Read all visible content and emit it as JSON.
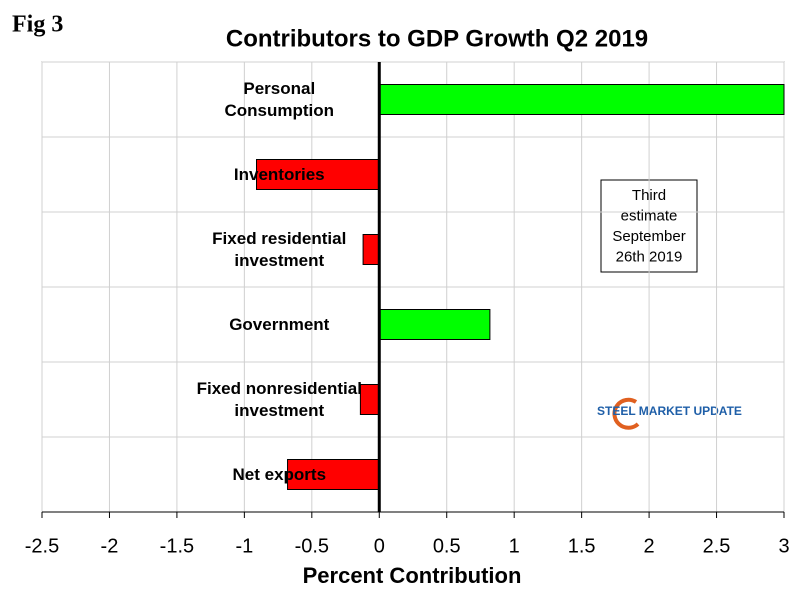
{
  "chart_data": {
    "type": "hbar",
    "figure_label": "Fig 3",
    "title": "Contributors to GDP Growth Q2 2019",
    "x_label": "Percent Contribution",
    "categories": [
      "Personal Consumption",
      "Inventories",
      "Fixed residential investment",
      "Government",
      "Fixed nonresidential investment",
      "Net exports"
    ],
    "values": [
      3.0,
      -0.91,
      -0.12,
      0.82,
      -0.14,
      -0.68
    ],
    "positive_color": "#00ff00",
    "negative_color": "#ff0000",
    "xlim": [
      -2.5,
      3
    ],
    "xticks": [
      -2.5,
      -2,
      -1.5,
      -1,
      -0.5,
      0,
      0.5,
      1,
      1.5,
      2,
      2.5,
      3
    ],
    "grid": true,
    "annotation": [
      "Third",
      "estimate",
      "September",
      "26th 2019"
    ],
    "logo": "STEEL MARKET UPDATE"
  }
}
